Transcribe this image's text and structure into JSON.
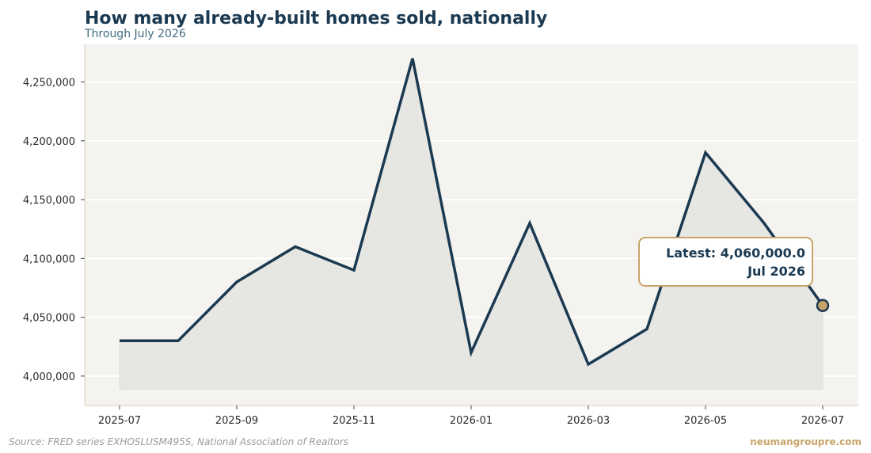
{
  "header": {
    "title": "How many already-built homes sold, nationally",
    "subtitle": "Through July 2026"
  },
  "footer": {
    "source": "Source: FRED series EXHOSLUSM495S, National Association of Realtors",
    "brand": "neumangroupre.com"
  },
  "colors": {
    "line": "#1b3a52",
    "fill": "#e6e6e3",
    "plot_bg": "#f5f3ef",
    "grid": "#ffffff",
    "axis": "#d9cbb4",
    "accent": "#c8a46a"
  },
  "chart_data": {
    "type": "area",
    "title": "How many already-built homes sold, nationally",
    "subtitle": "Through July 2026",
    "xlabel": "",
    "ylabel": "",
    "x": [
      "2025-07",
      "2025-08",
      "2025-09",
      "2025-10",
      "2025-11",
      "2025-12",
      "2026-01",
      "2026-02",
      "2026-03",
      "2026-04",
      "2026-05",
      "2026-06",
      "2026-07"
    ],
    "series": [
      {
        "values": [
          4030000,
          4030000,
          4080000,
          4110000,
          4090000,
          4270000,
          4020000,
          4130000,
          4010000,
          4040000,
          4190000,
          4130000,
          4060000
        ]
      }
    ],
    "xticks": [
      "2025-07",
      "2025-09",
      "2025-11",
      "2026-01",
      "2026-03",
      "2026-05",
      "2026-07"
    ],
    "yticks": [
      4000000,
      4050000,
      4100000,
      4150000,
      4200000,
      4250000
    ],
    "ytick_labels": [
      "4,000,000",
      "4,050,000",
      "4,100,000",
      "4,150,000",
      "4,200,000",
      "4,250,000"
    ],
    "ylim": [
      3975000,
      4282000
    ],
    "area_baseline": 3989000,
    "grid": true,
    "latest_callout": {
      "label": "Latest: 4,060,000.0",
      "date": "Jul 2026"
    }
  }
}
